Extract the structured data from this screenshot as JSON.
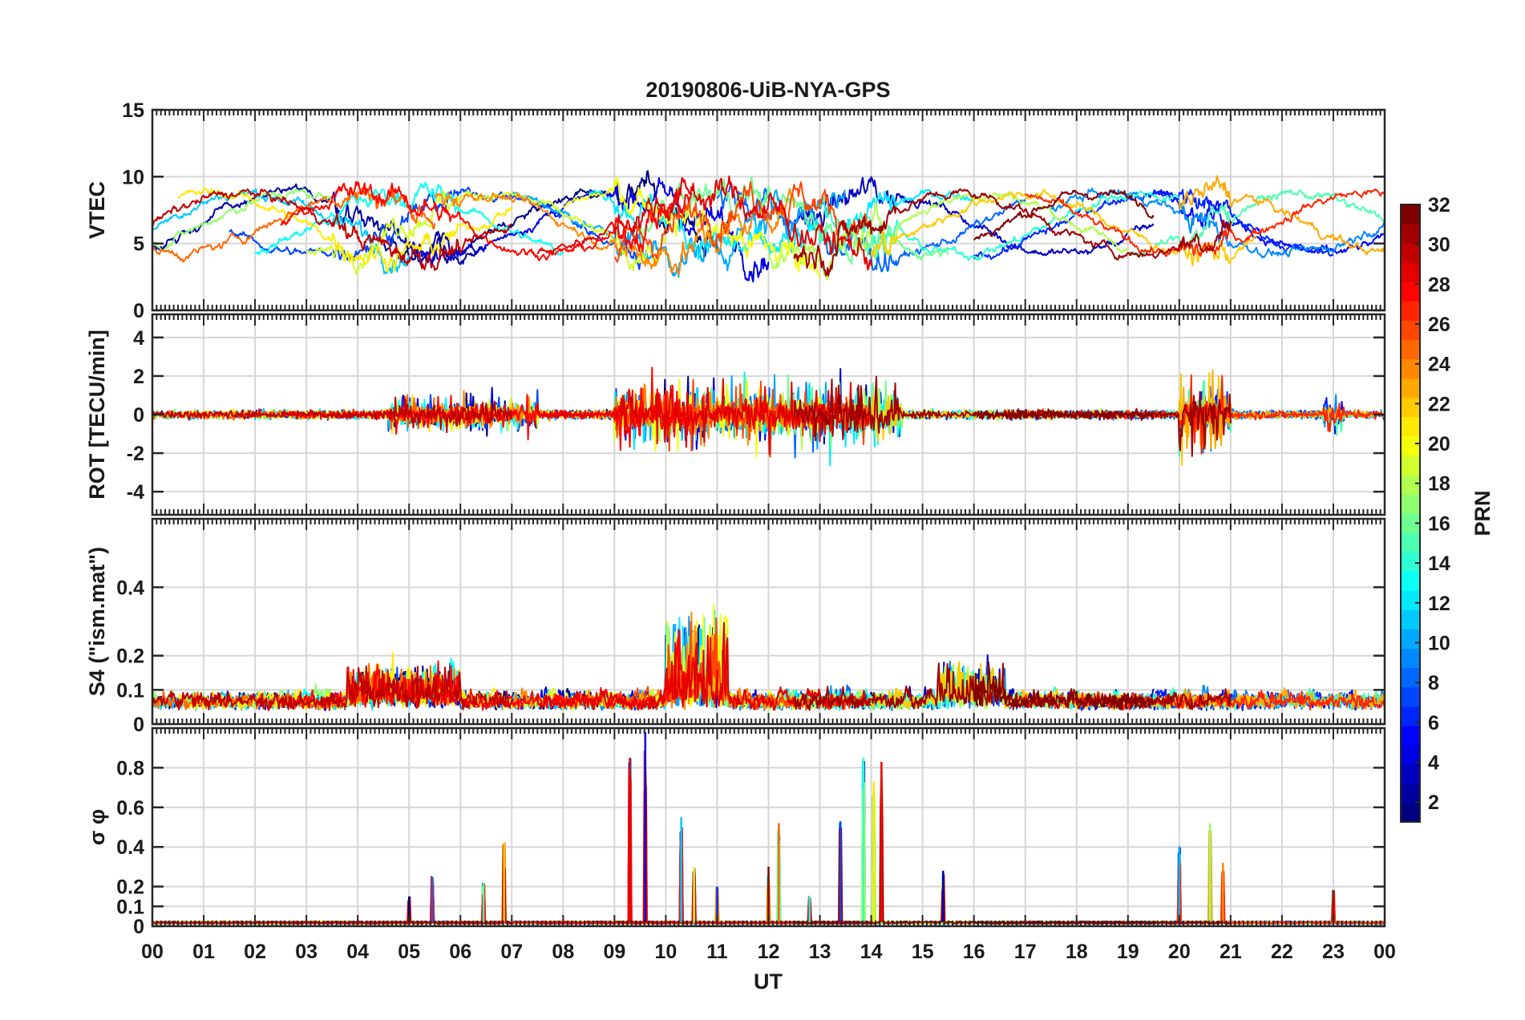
{
  "chart_data": {
    "type": "line",
    "title": "20190806-UiB-NYA-GPS",
    "xlabel": "UT",
    "x_ticks": [
      "00",
      "01",
      "02",
      "03",
      "04",
      "05",
      "06",
      "07",
      "08",
      "09",
      "10",
      "11",
      "12",
      "13",
      "14",
      "15",
      "16",
      "17",
      "18",
      "19",
      "20",
      "21",
      "22",
      "23",
      "00"
    ],
    "xlim": [
      0,
      24
    ],
    "grid": true,
    "panels": [
      {
        "ylabel": "VTEC",
        "ylim": [
          0,
          15
        ],
        "yticks": [
          "0",
          "5",
          "10",
          "15"
        ],
        "ytick_values": [
          0,
          5,
          10,
          15
        ],
        "base_range": [
          4,
          9
        ],
        "active_windows": [
          [
            3.5,
            6.0,
            1.5
          ],
          [
            9.0,
            14.5,
            2.5
          ],
          [
            20.0,
            21.0,
            2.0
          ]
        ]
      },
      {
        "ylabel": "ROT [TECU/min]",
        "ylim": [
          -5.2,
          5.2
        ],
        "yticks": [
          "-4",
          "-2",
          "0",
          "2",
          "4"
        ],
        "ytick_values": [
          -4,
          -2,
          0,
          2,
          4
        ],
        "active_windows": [
          [
            4.6,
            7.5,
            1.5
          ],
          [
            9.0,
            14.6,
            3.0
          ],
          [
            20.0,
            21.0,
            3.5
          ],
          [
            22.8,
            23.2,
            2.0
          ]
        ]
      },
      {
        "ylabel": "S4 (\"ism.mat\")",
        "ylim": [
          0,
          0.6
        ],
        "yticks": [
          "0",
          "0.1",
          "0.2",
          "0.4"
        ],
        "ytick_values": [
          0,
          0.1,
          0.2,
          0.4
        ],
        "base_range": [
          0.04,
          0.1
        ],
        "active_windows": [
          [
            10.0,
            11.2,
            0.28
          ],
          [
            3.8,
            6.0,
            0.12
          ],
          [
            15.3,
            16.6,
            0.12
          ]
        ]
      },
      {
        "ylabel": "σ φ",
        "ylim": [
          0,
          1.0
        ],
        "yticks": [
          "0",
          "0.1",
          "0.2",
          "0.4",
          "0.6",
          "0.8"
        ],
        "ytick_values": [
          0,
          0.1,
          0.2,
          0.4,
          0.6,
          0.8
        ],
        "spikes": [
          [
            5.0,
            0.15
          ],
          [
            5.45,
            0.25
          ],
          [
            6.45,
            0.22
          ],
          [
            6.85,
            0.42
          ],
          [
            9.3,
            0.85
          ],
          [
            9.6,
            0.98
          ],
          [
            10.3,
            0.55
          ],
          [
            10.55,
            0.3
          ],
          [
            12.2,
            0.52
          ],
          [
            12.0,
            0.3
          ],
          [
            13.4,
            0.53
          ],
          [
            13.85,
            0.85
          ],
          [
            14.05,
            0.73
          ],
          [
            14.2,
            0.83
          ],
          [
            15.4,
            0.28
          ],
          [
            20.0,
            0.4
          ],
          [
            20.6,
            0.52
          ],
          [
            20.85,
            0.32
          ],
          [
            23.0,
            0.18
          ],
          [
            11.0,
            0.2
          ],
          [
            12.8,
            0.15
          ]
        ]
      }
    ],
    "colorbar": {
      "label": "PRN",
      "range": [
        1,
        32
      ],
      "ticks": [
        "2",
        "4",
        "6",
        "8",
        "10",
        "12",
        "14",
        "16",
        "18",
        "20",
        "22",
        "24",
        "26",
        "28",
        "30",
        "32"
      ],
      "tick_values": [
        2,
        4,
        6,
        8,
        10,
        12,
        14,
        16,
        18,
        20,
        22,
        24,
        26,
        28,
        30,
        32
      ],
      "colormap": "jet"
    },
    "series": [
      {
        "prn": 1,
        "start": 4.5,
        "end": 11.0
      },
      {
        "prn": 2,
        "start": 0.0,
        "end": 6.5
      },
      {
        "prn": 3,
        "start": 12.5,
        "end": 19.5
      },
      {
        "prn": 4,
        "start": 5.0,
        "end": 12.0
      },
      {
        "prn": 5,
        "start": 19.5,
        "end": 24.0
      },
      {
        "prn": 6,
        "start": 16.0,
        "end": 23.0
      },
      {
        "prn": 7,
        "start": 1.5,
        "end": 9.5
      },
      {
        "prn": 8,
        "start": 11.0,
        "end": 17.0
      },
      {
        "prn": 9,
        "start": 17.5,
        "end": 24.0
      },
      {
        "prn": 10,
        "start": 7.0,
        "end": 13.5
      },
      {
        "prn": 11,
        "start": 0.0,
        "end": 5.0
      },
      {
        "prn": 12,
        "start": 8.5,
        "end": 16.0
      },
      {
        "prn": 13,
        "start": 2.0,
        "end": 8.0
      },
      {
        "prn": 14,
        "start": 13.0,
        "end": 20.0
      },
      {
        "prn": 15,
        "start": 19.0,
        "end": 24.0
      },
      {
        "prn": 16,
        "start": 9.5,
        "end": 15.5
      },
      {
        "prn": 17,
        "start": 0.0,
        "end": 3.5
      },
      {
        "prn": 18,
        "start": 12.0,
        "end": 19.0
      },
      {
        "prn": 19,
        "start": 3.0,
        "end": 10.0
      },
      {
        "prn": 20,
        "start": 8.0,
        "end": 13.0
      },
      {
        "prn": 21,
        "start": 0.5,
        "end": 7.0
      },
      {
        "prn": 22,
        "start": 14.0,
        "end": 21.5
      },
      {
        "prn": 23,
        "start": 20.0,
        "end": 24.0
      },
      {
        "prn": 24,
        "start": 5.5,
        "end": 12.5
      },
      {
        "prn": 25,
        "start": 0.0,
        "end": 5.5
      },
      {
        "prn": 26,
        "start": 9.0,
        "end": 14.0
      },
      {
        "prn": 27,
        "start": 17.0,
        "end": 24.0
      },
      {
        "prn": 28,
        "start": 2.5,
        "end": 10.5
      },
      {
        "prn": 29,
        "start": 7.5,
        "end": 14.0
      },
      {
        "prn": 30,
        "start": 0.0,
        "end": 7.0
      },
      {
        "prn": 31,
        "start": 12.5,
        "end": 21.0
      },
      {
        "prn": 32,
        "start": 16.0,
        "end": 19.5
      }
    ]
  }
}
